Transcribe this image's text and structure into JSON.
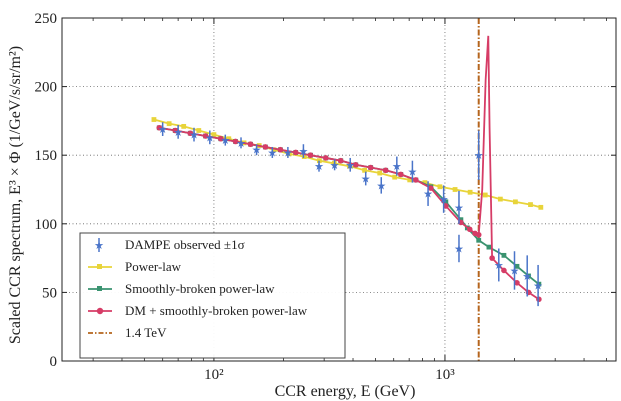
{
  "chart_data": {
    "type": "line",
    "title": "",
    "xlabel": "CCR energy, E (GeV)",
    "ylabel": "Scaled CCR spectrum, E³ × Φ (1/GeV/s/sr/m²)",
    "x_scale": "log",
    "xlim": [
      22,
      5500
    ],
    "ylim": [
      0,
      250
    ],
    "x_ticks": [
      {
        "value": 100,
        "label": "10²"
      },
      {
        "value": 1000,
        "label": "10³"
      }
    ],
    "y_ticks": [
      0,
      50,
      100,
      150,
      200,
      250
    ],
    "grid": true,
    "legend_position": "lower-left",
    "vline": {
      "x": 1400,
      "label": "1.4 TeV",
      "color": "#b5651d"
    },
    "observed": {
      "name": "DAMPE observed ±1σ",
      "color": "#4a74c9",
      "points": [
        {
          "x": 60,
          "y": 169,
          "err": 5
        },
        {
          "x": 70,
          "y": 167,
          "err": 5
        },
        {
          "x": 82,
          "y": 165,
          "err": 5
        },
        {
          "x": 96,
          "y": 163,
          "err": 5
        },
        {
          "x": 112,
          "y": 161,
          "err": 4
        },
        {
          "x": 131,
          "y": 159,
          "err": 4
        },
        {
          "x": 153,
          "y": 154,
          "err": 4
        },
        {
          "x": 179,
          "y": 152,
          "err": 4
        },
        {
          "x": 209,
          "y": 152,
          "err": 4
        },
        {
          "x": 244,
          "y": 153,
          "err": 5
        },
        {
          "x": 285,
          "y": 142,
          "err": 4
        },
        {
          "x": 333,
          "y": 143,
          "err": 4
        },
        {
          "x": 389,
          "y": 143,
          "err": 5
        },
        {
          "x": 454,
          "y": 133,
          "err": 5
        },
        {
          "x": 530,
          "y": 128,
          "err": 6
        },
        {
          "x": 619,
          "y": 142,
          "err": 7
        },
        {
          "x": 723,
          "y": 138,
          "err": 8
        },
        {
          "x": 845,
          "y": 122,
          "err": 9
        },
        {
          "x": 987,
          "y": 118,
          "err": 10
        },
        {
          "x": 1150,
          "y": 112,
          "err": 12
        },
        {
          "x": 1150,
          "y": 82,
          "err": 10
        },
        {
          "x": 1400,
          "y": 150,
          "err": 18
        },
        {
          "x": 1710,
          "y": 70,
          "err": 12
        },
        {
          "x": 2000,
          "y": 66,
          "err": 14
        },
        {
          "x": 2270,
          "y": 62,
          "err": 15
        },
        {
          "x": 2530,
          "y": 55,
          "err": 15
        }
      ]
    },
    "series": [
      {
        "name": "Power-law",
        "color": "#e8d43a",
        "points": [
          [
            55,
            176
          ],
          [
            64,
            173
          ],
          [
            74,
            171
          ],
          [
            86,
            168
          ],
          [
            100,
            165
          ],
          [
            116,
            162
          ],
          [
            135,
            159
          ],
          [
            157,
            157
          ],
          [
            182,
            154
          ],
          [
            212,
            151
          ],
          [
            246,
            149
          ],
          [
            286,
            146
          ],
          [
            332,
            144
          ],
          [
            386,
            142
          ],
          [
            449,
            139
          ],
          [
            522,
            137
          ],
          [
            606,
            134
          ],
          [
            704,
            132
          ],
          [
            819,
            130
          ],
          [
            951,
            127
          ],
          [
            1106,
            125
          ],
          [
            1285,
            123
          ],
          [
            1494,
            121
          ],
          [
            1737,
            118
          ],
          [
            2018,
            116
          ],
          [
            2346,
            114
          ],
          [
            2600,
            112
          ]
        ]
      },
      {
        "name": "Smoothly-broken power-law",
        "color": "#3a9370",
        "points": [
          [
            58,
            170
          ],
          [
            68,
            168
          ],
          [
            79,
            166
          ],
          [
            92,
            164
          ],
          [
            107,
            162
          ],
          [
            124,
            160
          ],
          [
            144,
            158
          ],
          [
            167,
            156
          ],
          [
            194,
            154
          ],
          [
            226,
            152
          ],
          [
            262,
            150
          ],
          [
            305,
            148
          ],
          [
            354,
            146
          ],
          [
            411,
            143
          ],
          [
            477,
            141
          ],
          [
            554,
            139
          ],
          [
            644,
            136
          ],
          [
            748,
            132
          ],
          [
            869,
            127
          ],
          [
            1009,
            116
          ],
          [
            1172,
            103
          ],
          [
            1250,
            97
          ],
          [
            1400,
            88
          ],
          [
            1550,
            83
          ],
          [
            1800,
            77
          ],
          [
            2050,
            69
          ],
          [
            2300,
            62
          ],
          [
            2550,
            56
          ]
        ]
      },
      {
        "name": "DM + smoothly-broken power-law",
        "color": "#d63c66",
        "points": [
          [
            58,
            170
          ],
          [
            68,
            168
          ],
          [
            79,
            166
          ],
          [
            92,
            164
          ],
          [
            107,
            162
          ],
          [
            124,
            160
          ],
          [
            144,
            158
          ],
          [
            167,
            156
          ],
          [
            194,
            154
          ],
          [
            226,
            152
          ],
          [
            262,
            150
          ],
          [
            305,
            148
          ],
          [
            354,
            146
          ],
          [
            411,
            143
          ],
          [
            477,
            141
          ],
          [
            554,
            139
          ],
          [
            644,
            136
          ],
          [
            748,
            132
          ],
          [
            869,
            126
          ],
          [
            1009,
            113
          ],
          [
            1172,
            101
          ],
          [
            1280,
            96
          ],
          [
            1350,
            93
          ],
          [
            1400,
            92
          ],
          [
            1450,
            125
          ],
          [
            1500,
            205
          ],
          [
            1540,
            237
          ],
          [
            1560,
            170
          ],
          [
            1600,
            75
          ],
          [
            1800,
            66
          ],
          [
            2050,
            57
          ],
          [
            2300,
            50
          ],
          [
            2550,
            45
          ]
        ]
      }
    ]
  }
}
